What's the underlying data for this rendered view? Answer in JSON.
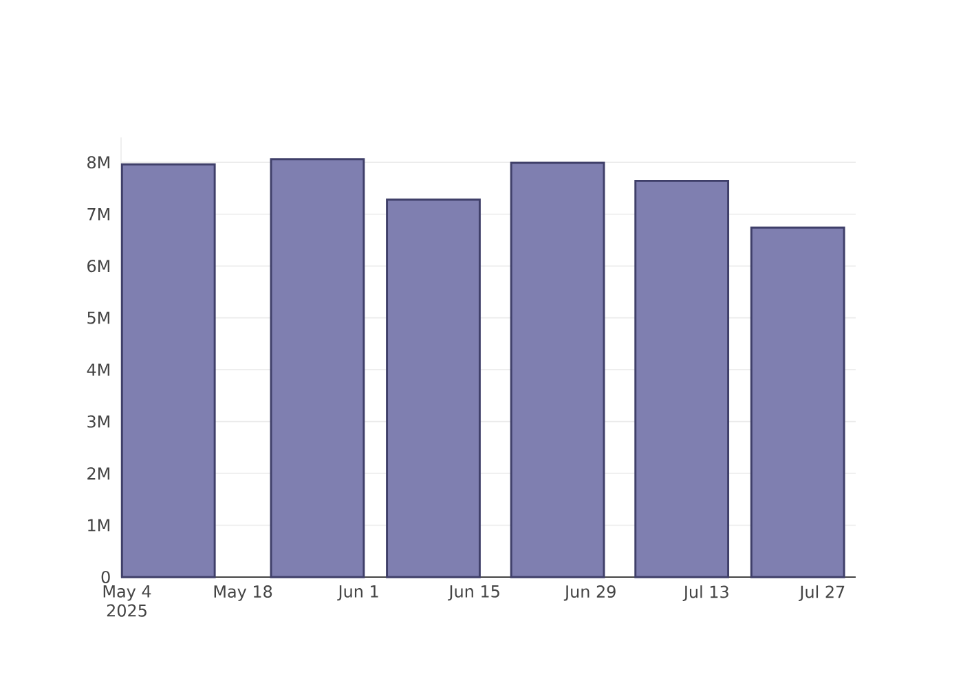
{
  "chart_data": {
    "type": "bar",
    "x": [
      "2025-05-09",
      "2025-05-27",
      "2025-06-10",
      "2025-06-25",
      "2025-07-10",
      "2025-07-24"
    ],
    "values": [
      7960000,
      8060000,
      7280000,
      7990000,
      7640000,
      6740000
    ],
    "color": "#7f7fb0",
    "xlim": [
      "2025-05-03T07:00",
      "2025-07-31"
    ],
    "xticks": [
      {
        "value": "2025-05-04",
        "label": "May 4\n2025"
      },
      {
        "value": "2025-05-18",
        "label": "May 18"
      },
      {
        "value": "2025-06-01",
        "label": "Jun 1"
      },
      {
        "value": "2025-06-15",
        "label": "Jun 15"
      },
      {
        "value": "2025-06-29",
        "label": "Jun 29"
      },
      {
        "value": "2025-07-13",
        "label": "Jul 13"
      },
      {
        "value": "2025-07-27",
        "label": "Jul 27"
      }
    ],
    "ylim": [
      0,
      8480000
    ],
    "yticks": [
      0,
      {
        "value": 1000000,
        "label": "1M"
      },
      {
        "value": 2000000,
        "label": "2M"
      },
      {
        "value": 3000000,
        "label": "3M"
      },
      {
        "value": 4000000,
        "label": "4M"
      },
      {
        "value": 5000000,
        "label": "5M"
      },
      {
        "value": 6000000,
        "label": "6M"
      },
      {
        "value": 7000000,
        "label": "7M"
      },
      {
        "value": 8000000,
        "label": "8M"
      }
    ],
    "grid": "y"
  }
}
